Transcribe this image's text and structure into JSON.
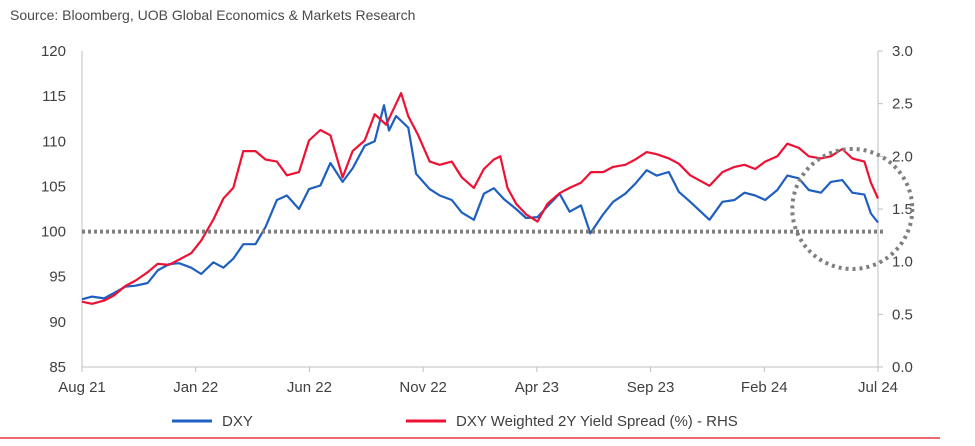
{
  "source": "Source: Bloomberg, UOB Global Economics & Markets Research",
  "colors": {
    "dxy": "#1f5fbf",
    "spread": "#ee1133",
    "reference": "#7f7f7f",
    "bottom_rule": "#e8343e",
    "axis": "#bfbfbf"
  },
  "chart_data": {
    "type": "line",
    "x_tick_labels": [
      "Aug 21",
      "Jan 22",
      "Jun 22",
      "Nov 22",
      "Apr 23",
      "Sep 23",
      "Feb 24",
      "Jul 24"
    ],
    "y_left": {
      "ticks": [
        "85",
        "90",
        "95",
        "100",
        "105",
        "110",
        "115",
        "120"
      ],
      "ylim": [
        85,
        120
      ]
    },
    "y_right": {
      "ticks": [
        "0.0",
        "0.5",
        "1.0",
        "1.5",
        "2.0",
        "2.5",
        "3.0"
      ],
      "ylim": [
        0,
        3
      ]
    },
    "reference_line": {
      "axis": "left",
      "value": 100,
      "style": "dotted"
    },
    "highlight_circle": {
      "center_date": "2024-07",
      "center_y_left": 102.5,
      "style": "dotted"
    },
    "grid": false,
    "legend_placement": "bottom",
    "series": [
      {
        "name": "DXY",
        "axis": "left",
        "points": [
          [
            "2021-08-01",
            92.5
          ],
          [
            "2021-08-15",
            92.8
          ],
          [
            "2021-09-01",
            92.6
          ],
          [
            "2021-09-15",
            93.2
          ],
          [
            "2021-10-01",
            93.9
          ],
          [
            "2021-10-15",
            94.0
          ],
          [
            "2021-11-01",
            94.3
          ],
          [
            "2021-11-15",
            95.7
          ],
          [
            "2021-12-01",
            96.4
          ],
          [
            "2021-12-15",
            96.5
          ],
          [
            "2022-01-01",
            96.0
          ],
          [
            "2022-01-15",
            95.3
          ],
          [
            "2022-02-01",
            96.6
          ],
          [
            "2022-02-15",
            96.0
          ],
          [
            "2022-03-01",
            97.0
          ],
          [
            "2022-03-15",
            98.6
          ],
          [
            "2022-04-01",
            98.6
          ],
          [
            "2022-04-15",
            100.5
          ],
          [
            "2022-05-01",
            103.5
          ],
          [
            "2022-05-15",
            104.0
          ],
          [
            "2022-06-01",
            102.5
          ],
          [
            "2022-06-15",
            104.7
          ],
          [
            "2022-07-01",
            105.1
          ],
          [
            "2022-07-15",
            107.6
          ],
          [
            "2022-08-01",
            105.5
          ],
          [
            "2022-08-15",
            107.0
          ],
          [
            "2022-09-01",
            109.5
          ],
          [
            "2022-09-15",
            110.0
          ],
          [
            "2022-09-28",
            114.0
          ],
          [
            "2022-10-05",
            111.2
          ],
          [
            "2022-10-15",
            112.8
          ],
          [
            "2022-11-01",
            111.5
          ],
          [
            "2022-11-12",
            106.4
          ],
          [
            "2022-12-01",
            104.7
          ],
          [
            "2022-12-15",
            104.0
          ],
          [
            "2023-01-01",
            103.5
          ],
          [
            "2023-01-15",
            102.1
          ],
          [
            "2023-02-01",
            101.3
          ],
          [
            "2023-02-15",
            104.2
          ],
          [
            "2023-03-01",
            104.8
          ],
          [
            "2023-03-15",
            103.6
          ],
          [
            "2023-04-01",
            102.5
          ],
          [
            "2023-04-15",
            101.5
          ],
          [
            "2023-05-01",
            101.6
          ],
          [
            "2023-05-15",
            102.8
          ],
          [
            "2023-06-01",
            104.2
          ],
          [
            "2023-06-15",
            102.2
          ],
          [
            "2023-07-01",
            102.9
          ],
          [
            "2023-07-14",
            99.8
          ],
          [
            "2023-08-01",
            101.9
          ],
          [
            "2023-08-15",
            103.3
          ],
          [
            "2023-09-01",
            104.2
          ],
          [
            "2023-09-15",
            105.3
          ],
          [
            "2023-10-01",
            106.8
          ],
          [
            "2023-10-15",
            106.2
          ],
          [
            "2023-11-01",
            106.6
          ],
          [
            "2023-11-15",
            104.4
          ],
          [
            "2023-12-01",
            103.3
          ],
          [
            "2023-12-28",
            101.3
          ],
          [
            "2024-01-15",
            103.3
          ],
          [
            "2024-02-01",
            103.5
          ],
          [
            "2024-02-15",
            104.3
          ],
          [
            "2024-03-01",
            104.0
          ],
          [
            "2024-03-15",
            103.5
          ],
          [
            "2024-04-01",
            104.6
          ],
          [
            "2024-04-15",
            106.2
          ],
          [
            "2024-05-01",
            105.9
          ],
          [
            "2024-05-15",
            104.6
          ],
          [
            "2024-06-01",
            104.3
          ],
          [
            "2024-06-15",
            105.5
          ],
          [
            "2024-07-01",
            105.7
          ],
          [
            "2024-07-15",
            104.3
          ],
          [
            "2024-08-01",
            104.1
          ],
          [
            "2024-08-10",
            102.0
          ],
          [
            "2024-08-20",
            101.0
          ]
        ]
      },
      {
        "name": "DXY Weighted 2Y Yield Spread (%) - RHS",
        "axis": "right",
        "points": [
          [
            "2021-08-01",
            0.62
          ],
          [
            "2021-08-15",
            0.6
          ],
          [
            "2021-09-01",
            0.63
          ],
          [
            "2021-09-15",
            0.68
          ],
          [
            "2021-10-01",
            0.77
          ],
          [
            "2021-10-15",
            0.82
          ],
          [
            "2021-11-01",
            0.9
          ],
          [
            "2021-11-15",
            0.98
          ],
          [
            "2021-12-01",
            0.97
          ],
          [
            "2021-12-15",
            1.02
          ],
          [
            "2022-01-01",
            1.08
          ],
          [
            "2022-01-15",
            1.2
          ],
          [
            "2022-02-01",
            1.4
          ],
          [
            "2022-02-15",
            1.6
          ],
          [
            "2022-03-01",
            1.7
          ],
          [
            "2022-03-15",
            2.05
          ],
          [
            "2022-04-01",
            2.05
          ],
          [
            "2022-04-15",
            1.97
          ],
          [
            "2022-05-01",
            1.95
          ],
          [
            "2022-05-15",
            1.82
          ],
          [
            "2022-06-01",
            1.85
          ],
          [
            "2022-06-15",
            2.15
          ],
          [
            "2022-07-01",
            2.25
          ],
          [
            "2022-07-15",
            2.2
          ],
          [
            "2022-08-01",
            1.8
          ],
          [
            "2022-08-15",
            2.05
          ],
          [
            "2022-09-01",
            2.15
          ],
          [
            "2022-09-15",
            2.4
          ],
          [
            "2022-10-01",
            2.3
          ],
          [
            "2022-10-15",
            2.5
          ],
          [
            "2022-10-22",
            2.6
          ],
          [
            "2022-11-01",
            2.38
          ],
          [
            "2022-11-15",
            2.2
          ],
          [
            "2022-12-01",
            1.95
          ],
          [
            "2022-12-15",
            1.92
          ],
          [
            "2023-01-01",
            1.95
          ],
          [
            "2023-01-15",
            1.8
          ],
          [
            "2023-02-01",
            1.7
          ],
          [
            "2023-02-15",
            1.88
          ],
          [
            "2023-03-01",
            1.97
          ],
          [
            "2023-03-10",
            2.0
          ],
          [
            "2023-03-20",
            1.7
          ],
          [
            "2023-04-01",
            1.55
          ],
          [
            "2023-04-15",
            1.45
          ],
          [
            "2023-05-01",
            1.38
          ],
          [
            "2023-05-15",
            1.55
          ],
          [
            "2023-06-01",
            1.65
          ],
          [
            "2023-06-15",
            1.7
          ],
          [
            "2023-07-01",
            1.75
          ],
          [
            "2023-07-15",
            1.85
          ],
          [
            "2023-08-01",
            1.85
          ],
          [
            "2023-08-15",
            1.9
          ],
          [
            "2023-09-01",
            1.92
          ],
          [
            "2023-09-15",
            1.97
          ],
          [
            "2023-10-01",
            2.04
          ],
          [
            "2023-10-15",
            2.02
          ],
          [
            "2023-11-01",
            1.98
          ],
          [
            "2023-11-15",
            1.93
          ],
          [
            "2023-12-01",
            1.82
          ],
          [
            "2023-12-28",
            1.72
          ],
          [
            "2024-01-15",
            1.85
          ],
          [
            "2024-02-01",
            1.9
          ],
          [
            "2024-02-15",
            1.92
          ],
          [
            "2024-03-01",
            1.88
          ],
          [
            "2024-03-15",
            1.95
          ],
          [
            "2024-04-01",
            2.0
          ],
          [
            "2024-04-15",
            2.12
          ],
          [
            "2024-05-01",
            2.08
          ],
          [
            "2024-05-15",
            2.0
          ],
          [
            "2024-06-01",
            1.98
          ],
          [
            "2024-06-15",
            2.0
          ],
          [
            "2024-07-01",
            2.07
          ],
          [
            "2024-07-15",
            1.98
          ],
          [
            "2024-08-01",
            1.95
          ],
          [
            "2024-08-10",
            1.75
          ],
          [
            "2024-08-20",
            1.6
          ]
        ]
      }
    ]
  }
}
